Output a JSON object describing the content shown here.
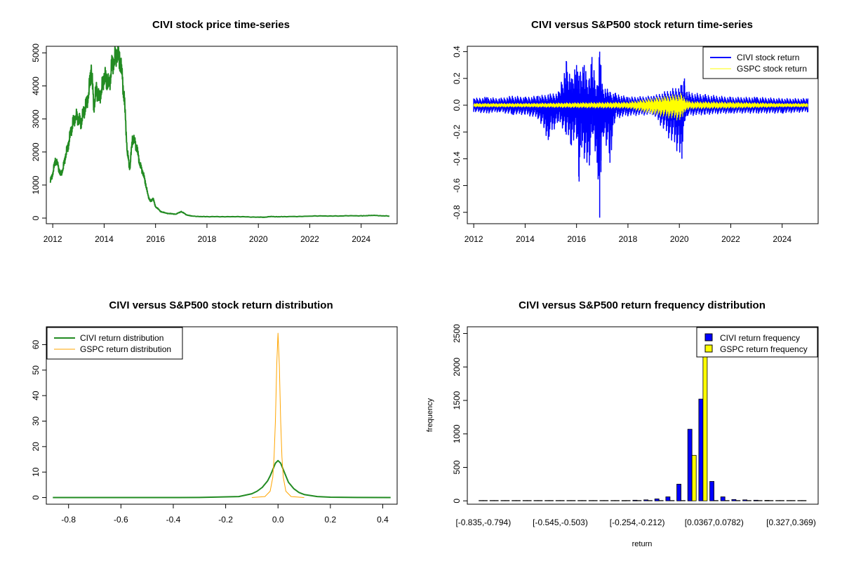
{
  "colors": {
    "civi_price": "#228B22",
    "civi_return": "#0000FF",
    "gspc_return": "#FFFF00",
    "civi_density": "#228B22",
    "gspc_density": "#FFA500",
    "civi_hist": "#0000FF",
    "gspc_hist": "#FFFF00"
  },
  "chart_data": [
    {
      "type": "line",
      "title": "CIVI stock price time-series",
      "xlabel": "",
      "ylabel": "",
      "xlim": [
        2011.75,
        2025.4
      ],
      "ylim": [
        -170,
        5200
      ],
      "xticks": [
        2012,
        2014,
        2016,
        2018,
        2020,
        2022,
        2024
      ],
      "xtick_labels": [
        "2012",
        "2014",
        "2016",
        "2018",
        "2020",
        "2022",
        "2024"
      ],
      "yticks": [
        0,
        1000,
        2000,
        3000,
        4000,
        5000
      ],
      "ytick_labels": [
        "0",
        "1000",
        "2000",
        "3000",
        "4000",
        "5000"
      ],
      "series": [
        {
          "x": [
            2011.9,
            2012.0,
            2012.1,
            2012.2,
            2012.3,
            2012.4,
            2012.5,
            2012.6,
            2012.7,
            2012.8,
            2012.9,
            2013.0,
            2013.1,
            2013.2,
            2013.3,
            2013.4,
            2013.5,
            2013.6,
            2013.7,
            2013.8,
            2013.9,
            2014.0,
            2014.1,
            2014.2,
            2014.3,
            2014.4,
            2014.5,
            2014.6,
            2014.7,
            2014.8,
            2014.9,
            2015.0,
            2015.1,
            2015.2,
            2015.3,
            2015.4,
            2015.5,
            2015.6,
            2015.7,
            2015.8,
            2015.9,
            2016.0,
            2016.2,
            2016.4,
            2016.6,
            2016.8,
            2017.0,
            2017.2,
            2017.4,
            2018.0,
            2019.0,
            2020.0,
            2020.2,
            2020.5,
            2021.0,
            2022.0,
            2023.0,
            2024.0,
            2024.5,
            2025.1
          ],
          "y": [
            1100,
            1350,
            1750,
            1600,
            1300,
            1500,
            1900,
            2200,
            2600,
            2900,
            3100,
            3000,
            2900,
            3200,
            3400,
            3800,
            4550,
            3400,
            3900,
            3600,
            3900,
            4300,
            4200,
            4000,
            4600,
            4800,
            5000,
            4850,
            4300,
            3400,
            2000,
            1500,
            2400,
            2300,
            2000,
            1600,
            1400,
            1100,
            700,
            500,
            600,
            350,
            200,
            150,
            130,
            120,
            200,
            100,
            60,
            40,
            45,
            30,
            25,
            45,
            40,
            60,
            65,
            70,
            80,
            60
          ]
        }
      ]
    },
    {
      "type": "line",
      "title": "CIVI versus S&P500 stock return time-series",
      "xlabel": "",
      "ylabel": "",
      "xlim": [
        2011.75,
        2025.4
      ],
      "ylim": [
        -0.885,
        0.44
      ],
      "xticks": [
        2012,
        2014,
        2016,
        2018,
        2020,
        2022,
        2024
      ],
      "xtick_labels": [
        "2012",
        "2014",
        "2016",
        "2018",
        "2020",
        "2022",
        "2024"
      ],
      "yticks": [
        -0.8,
        -0.6,
        -0.4,
        -0.2,
        0.0,
        0.2,
        0.4
      ],
      "ytick_labels": [
        "-0.8",
        "-0.6",
        "-0.4",
        "-0.2",
        "0.0",
        "0.2",
        "0.4"
      ],
      "legend_position": "top-right",
      "series": [
        {
          "name": "CIVI stock return",
          "x": [
            2012.0,
            2012.5,
            2013.0,
            2013.5,
            2014.0,
            2014.5,
            2014.9,
            2015.3,
            2015.6,
            2015.8,
            2016.0,
            2016.1,
            2016.15,
            2016.3,
            2016.5,
            2016.6,
            2016.8,
            2016.9,
            2016.95,
            2017.0,
            2017.3,
            2017.5,
            2018.0,
            2019.0,
            2020.1,
            2020.2,
            2020.3,
            2021.0,
            2022.0,
            2023.0,
            2024.0,
            2025.0
          ],
          "y_high": [
            0.05,
            0.06,
            0.05,
            0.07,
            0.06,
            0.07,
            0.08,
            0.1,
            0.33,
            0.2,
            0.3,
            0.22,
            0.25,
            0.3,
            0.2,
            0.36,
            0.15,
            0.4,
            0.3,
            0.16,
            0.1,
            0.09,
            0.06,
            0.07,
            0.15,
            0.2,
            0.1,
            0.08,
            0.06,
            0.06,
            0.05,
            0.05
          ],
          "y_low": [
            -0.05,
            -0.06,
            -0.05,
            -0.07,
            -0.07,
            -0.1,
            -0.26,
            -0.12,
            -0.22,
            -0.3,
            -0.25,
            -0.57,
            -0.3,
            -0.4,
            -0.45,
            -0.2,
            -0.43,
            -0.84,
            -0.5,
            -0.2,
            -0.43,
            -0.1,
            -0.08,
            -0.07,
            -0.4,
            -0.12,
            -0.08,
            -0.07,
            -0.06,
            -0.06,
            -0.06,
            -0.05
          ]
        },
        {
          "name": "GSPC stock return",
          "x": [
            2012.0,
            2014.0,
            2016.0,
            2018.0,
            2020.1,
            2020.2,
            2020.4,
            2022.0,
            2024.0,
            2025.0
          ],
          "y_high": [
            0.015,
            0.015,
            0.02,
            0.025,
            0.09,
            0.06,
            0.03,
            0.025,
            0.015,
            0.015
          ],
          "y_low": [
            -0.015,
            -0.015,
            -0.02,
            -0.025,
            -0.12,
            -0.05,
            -0.03,
            -0.025,
            -0.015,
            -0.015
          ]
        }
      ]
    },
    {
      "type": "line",
      "title": "CIVI versus S&P500 stock return distribution",
      "xlabel": "",
      "ylabel": "",
      "xlim": [
        -0.885,
        0.455
      ],
      "ylim": [
        -2.6,
        67
      ],
      "xticks": [
        -0.8,
        -0.6,
        -0.4,
        -0.2,
        0.0,
        0.2,
        0.4
      ],
      "xtick_labels": [
        "-0.8",
        "-0.6",
        "-0.4",
        "-0.2",
        "0.0",
        "0.2",
        "0.4"
      ],
      "yticks": [
        0,
        10,
        20,
        30,
        40,
        50,
        60
      ],
      "ytick_labels": [
        "0",
        "10",
        "20",
        "30",
        "40",
        "50",
        "60"
      ],
      "legend_position": "top-left",
      "series": [
        {
          "name": "CIVI return distribution",
          "x": [
            -0.86,
            -0.5,
            -0.3,
            -0.15,
            -0.1,
            -0.08,
            -0.06,
            -0.04,
            -0.03,
            -0.02,
            -0.01,
            0.0,
            0.01,
            0.02,
            0.03,
            0.04,
            0.06,
            0.08,
            0.1,
            0.15,
            0.2,
            0.3,
            0.43
          ],
          "y": [
            0.0,
            0.0,
            0.05,
            0.4,
            1.5,
            2.5,
            4.0,
            6.5,
            8.5,
            11.0,
            13.5,
            14.5,
            13.5,
            11.0,
            8.5,
            6.0,
            3.5,
            2.0,
            1.2,
            0.4,
            0.15,
            0.05,
            0.0
          ]
        },
        {
          "name": "GSPC return distribution",
          "x": [
            -0.1,
            -0.05,
            -0.03,
            -0.02,
            -0.015,
            -0.01,
            -0.005,
            0.0,
            0.005,
            0.01,
            0.015,
            0.02,
            0.03,
            0.05,
            0.1
          ],
          "y": [
            0.0,
            0.4,
            2.5,
            8.0,
            16.0,
            30.0,
            52.0,
            64.5,
            52.0,
            30.0,
            16.0,
            8.0,
            2.5,
            0.4,
            0.0
          ]
        }
      ]
    },
    {
      "type": "bar",
      "title": "CIVI versus S&P500 return frequency distribution",
      "xlabel": "return",
      "ylabel": "frequency",
      "ylim": [
        -50,
        2600
      ],
      "yticks": [
        0,
        500,
        1000,
        1500,
        2000,
        2500
      ],
      "ytick_labels": [
        "0",
        "500",
        "1000",
        "1500",
        "2000",
        "2500"
      ],
      "xtick_labels": [
        "[-0.835,-0.794)",
        "[-0.545,-0.503)",
        "[-0.254,-0.212)",
        "[0.0367,0.0782)",
        "[0.327,0.369)"
      ],
      "xtick_bins": [
        0,
        7,
        14,
        21,
        28
      ],
      "legend_position": "top-right",
      "bin_count": 30,
      "series": [
        {
          "name": "CIVI return frequency",
          "values": [
            1,
            0,
            0,
            0,
            0,
            0,
            0,
            5,
            1,
            2,
            3,
            5,
            4,
            6,
            10,
            15,
            30,
            60,
            250,
            1070,
            1520,
            290,
            60,
            20,
            15,
            10,
            8,
            5,
            3,
            2
          ]
        },
        {
          "name": "GSPC return frequency",
          "values": [
            0,
            0,
            0,
            0,
            0,
            0,
            0,
            0,
            0,
            0,
            0,
            0,
            0,
            0,
            0,
            0,
            0,
            0,
            0,
            680,
            2470,
            0,
            0,
            0,
            0,
            0,
            0,
            0,
            0,
            0
          ]
        }
      ]
    }
  ]
}
